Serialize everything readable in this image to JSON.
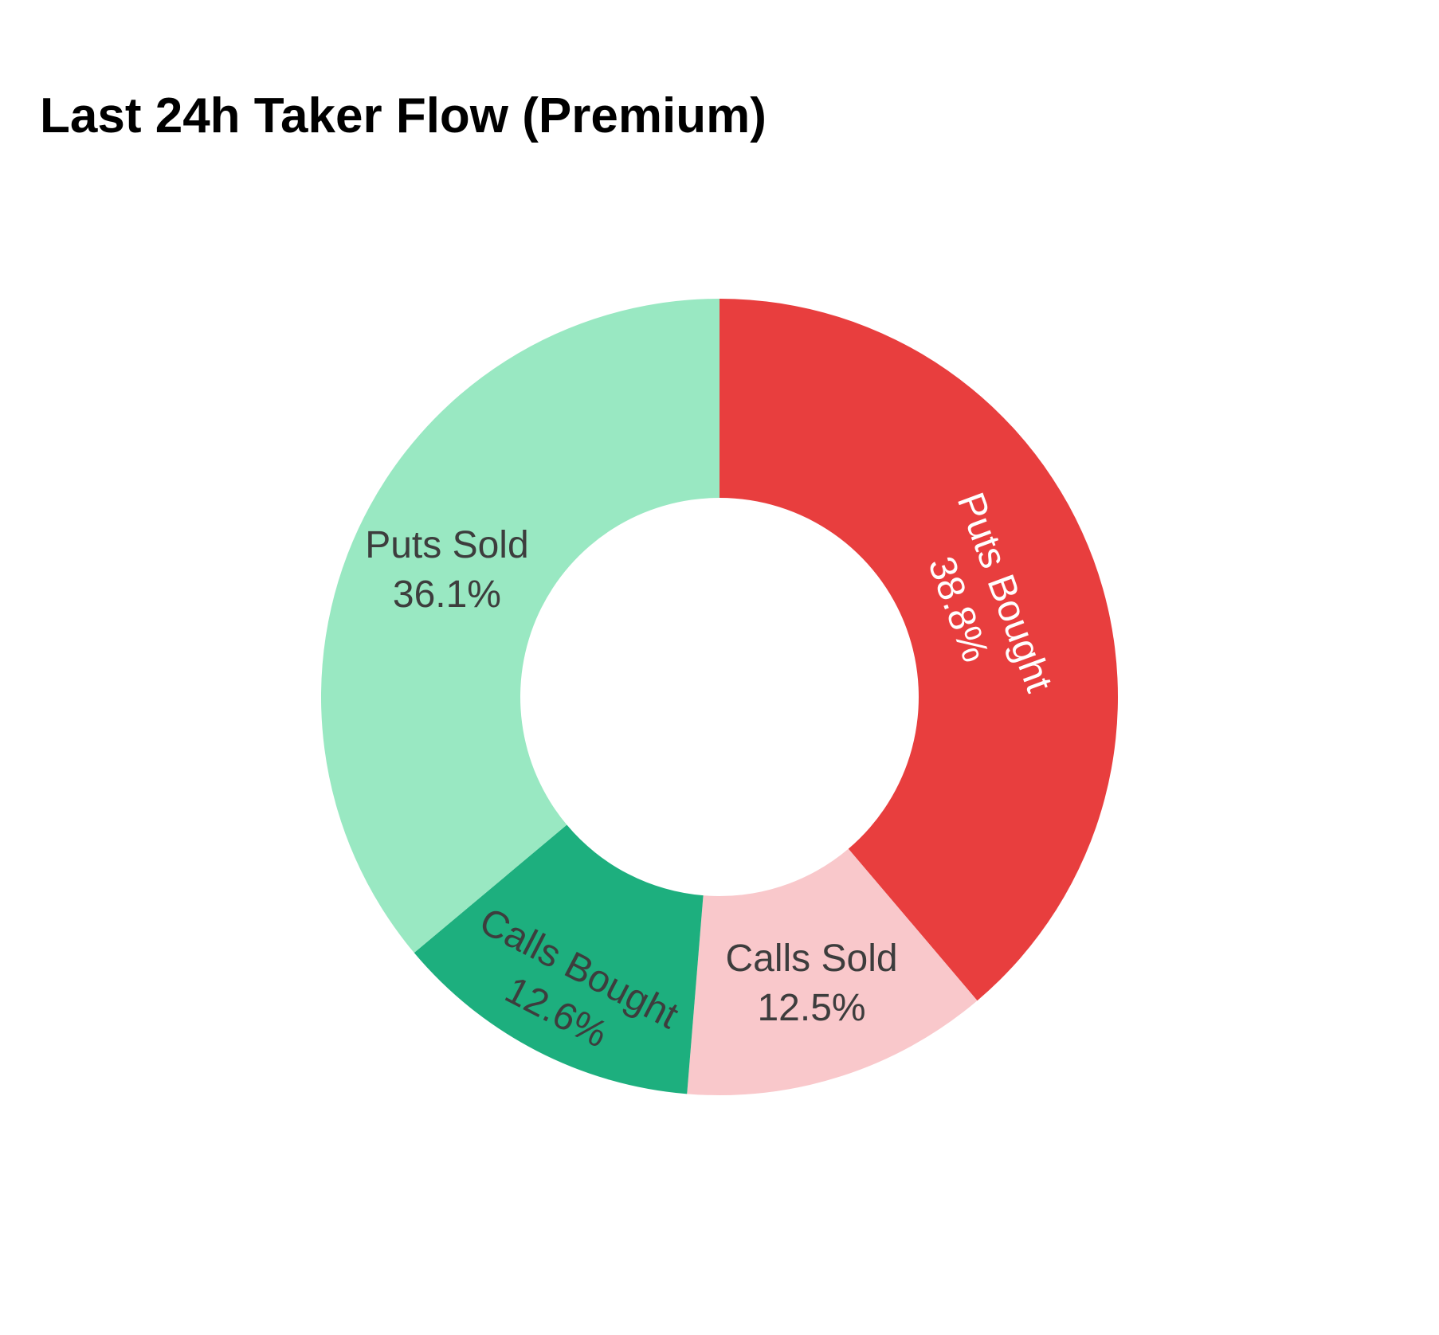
{
  "title": "Last 24h Taker Flow (Premium)",
  "title_color": "#000000",
  "chart_data": {
    "type": "pie",
    "subtype": "donut",
    "title": "Last 24h Taker Flow (Premium)",
    "labels": [
      "Puts Bought",
      "Calls Sold",
      "Calls Bought",
      "Puts Sold"
    ],
    "values": [
      38.8,
      12.5,
      12.6,
      36.1
    ],
    "display_labels": [
      "Puts Bought 38.8%",
      "Calls Sold 12.5%",
      "Calls Bought 12.6%",
      "Puts Sold 36.1%"
    ],
    "unit": "%",
    "colors": [
      "#e83e3e",
      "#f9c8cb",
      "#1daf7e",
      "#99e8c2"
    ],
    "text_colors": [
      "#ffffff",
      "#3d3d3d",
      "#3d3d3d",
      "#3d3d3d"
    ],
    "label_orientation": [
      "tangential",
      "horizontal",
      "tangential",
      "horizontal"
    ],
    "label_radius_frac": [
      0.7,
      0.755,
      0.83,
      0.755
    ],
    "hole": 0.5,
    "start_angle_deg": 0,
    "direction": "clockwise",
    "legend": "none",
    "background_color": "#ffffff"
  }
}
